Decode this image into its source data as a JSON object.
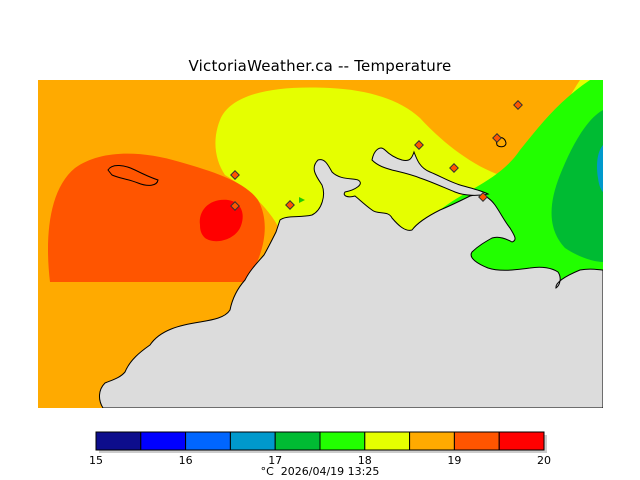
{
  "title": "VictoriaWeather.ca -- Temperature",
  "legend": {
    "bins": [
      {
        "from": 15.0,
        "to": 15.5,
        "color": "#0d0d8c"
      },
      {
        "from": 15.5,
        "to": 16.0,
        "color": "#0000ff"
      },
      {
        "from": 16.0,
        "to": 16.5,
        "color": "#0066ff"
      },
      {
        "from": 16.5,
        "to": 17.0,
        "color": "#0099cc"
      },
      {
        "from": 17.0,
        "to": 17.5,
        "color": "#00bb33"
      },
      {
        "from": 17.5,
        "to": 18.0,
        "color": "#22ff00"
      },
      {
        "from": 18.0,
        "to": 18.5,
        "color": "#e5ff00"
      },
      {
        "from": 18.5,
        "to": 19.0,
        "color": "#ffaa00"
      },
      {
        "from": 19.0,
        "to": 19.5,
        "color": "#ff5500"
      },
      {
        "from": 19.5,
        "to": 20.0,
        "color": "#ff0000"
      }
    ],
    "ticks": [
      "15",
      "16",
      "17",
      "18",
      "19",
      "20"
    ]
  },
  "footer": {
    "unit": "°C",
    "timestamp": "2026/04/19 13:25"
  },
  "colors": {
    "land": "#dcdcdc",
    "coastline": "#000000",
    "station_fill": "#ff5500",
    "station_outline": "#333333"
  }
}
